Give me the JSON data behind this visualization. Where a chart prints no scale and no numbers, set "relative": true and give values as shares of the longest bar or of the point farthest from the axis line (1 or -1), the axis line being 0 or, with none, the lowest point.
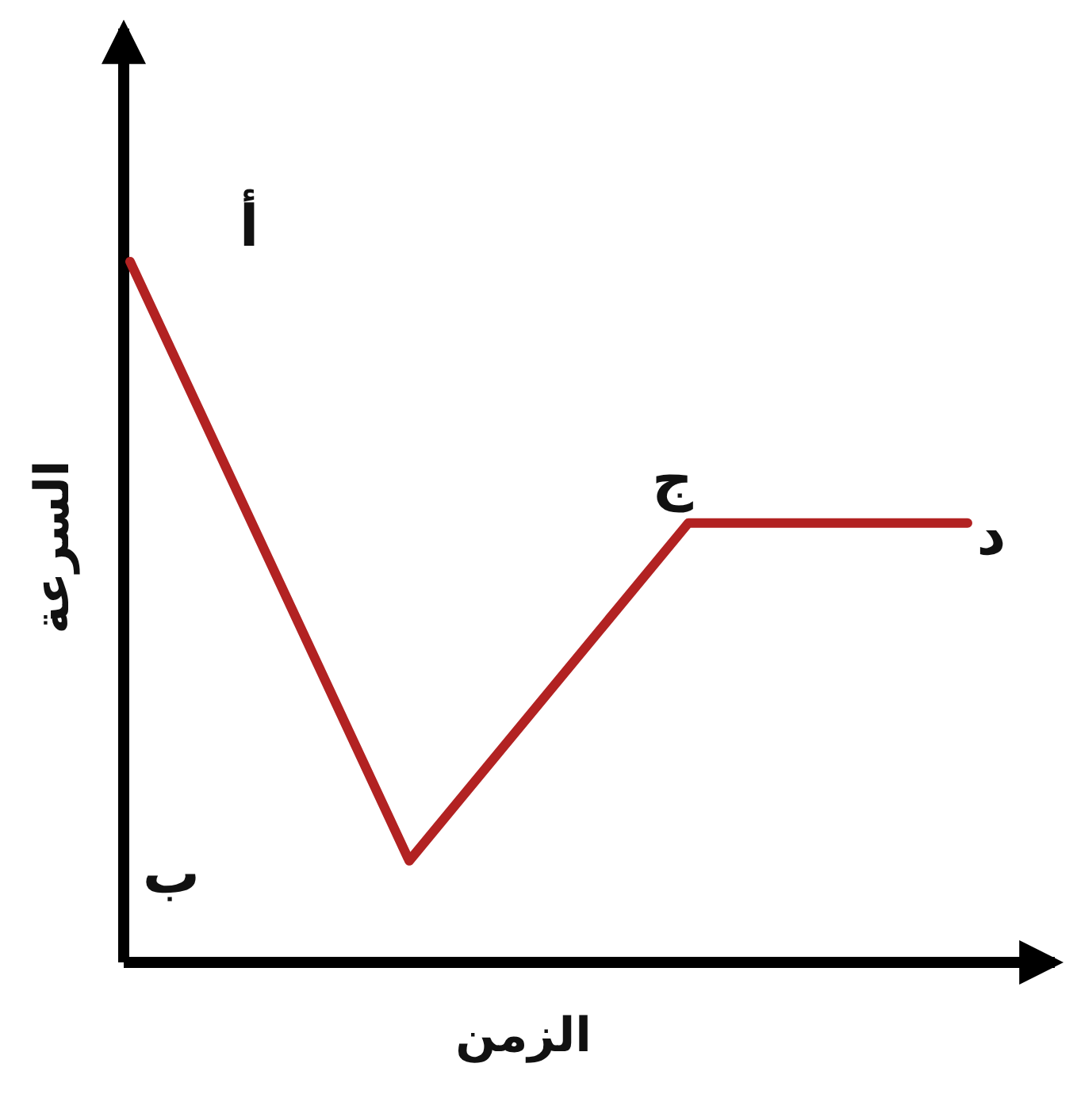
{
  "chart_data": {
    "type": "line",
    "relative": true,
    "xlabel": "الزمن",
    "ylabel": "السرعة",
    "categories": [
      null,
      null,
      null,
      null
    ],
    "series": [
      {
        "color": "#b22222",
        "values": [
          1,
          0.145,
          0.627,
          0.627
        ]
      }
    ],
    "annotations": [
      "أ",
      "ب",
      "ج",
      "د"
    ],
    "grid": false,
    "marker": "none",
    "line_style": "solid"
  }
}
